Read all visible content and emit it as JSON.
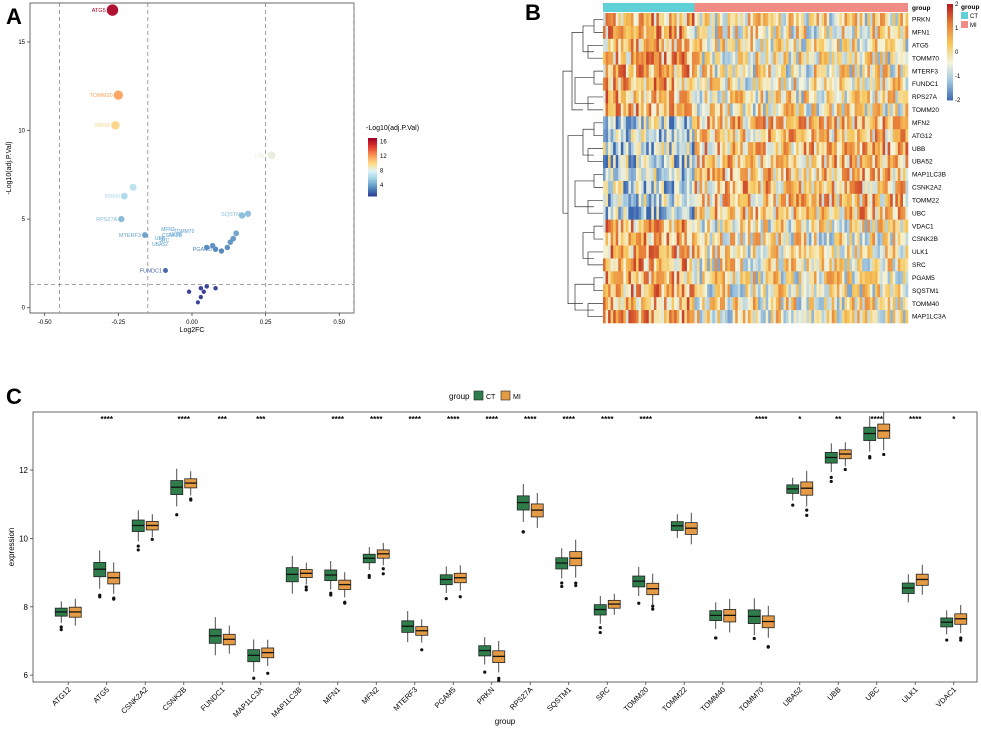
{
  "panels": {
    "a": "A",
    "b": "B",
    "c": "C"
  },
  "chart_data": [
    {
      "type": "scatter",
      "panel": "A",
      "title": "",
      "xlabel": "Log2FC",
      "ylabel": "-Log10(adj.P.Val)",
      "xlim": [
        -0.55,
        0.55
      ],
      "ylim": [
        -0.3,
        17.2
      ],
      "xticks": [
        -0.5,
        -0.25,
        0.0,
        0.25,
        0.5
      ],
      "xtick_labels": [
        "-0.50",
        "-0.25",
        "0.00",
        "0.25",
        "0.50"
      ],
      "yticks": [
        0,
        5,
        10,
        15
      ],
      "vlines": [
        -0.45,
        -0.15,
        0.25,
        0.55
      ],
      "hline": 1.3,
      "grid": false,
      "colorbar": {
        "title": "-Log10(adj.P.Val)",
        "ticks": [
          4,
          8,
          12,
          16
        ],
        "min": 1,
        "max": 17,
        "colors": [
          "#313695",
          "#4575b4",
          "#74add1",
          "#abd9e9",
          "#e0f3f8",
          "#fee090",
          "#fdae61",
          "#f46d43",
          "#d73027",
          "#a50026"
        ]
      },
      "points": [
        {
          "label": "ATG5",
          "x": -0.27,
          "y": 16.8
        },
        {
          "label": "TOMM20",
          "x": -0.25,
          "y": 12.0
        },
        {
          "label": "MFN1",
          "x": -0.26,
          "y": 10.3
        },
        {
          "label": "UBC",
          "x": 0.27,
          "y": 8.6
        },
        {
          "label": "",
          "x": -0.2,
          "y": 6.8
        },
        {
          "label": "PRKN",
          "x": -0.23,
          "y": 6.3
        },
        {
          "label": "RPS27A",
          "x": -0.24,
          "y": 5.0
        },
        {
          "label": "MTERF3",
          "x": -0.16,
          "y": 4.1
        },
        {
          "label": "SQSTM1",
          "x": 0.19,
          "y": 5.3
        },
        {
          "label": "",
          "x": 0.17,
          "y": 5.2
        },
        {
          "label": "",
          "x": 0.15,
          "y": 4.2
        },
        {
          "label": "",
          "x": 0.14,
          "y": 3.9
        },
        {
          "label": "",
          "x": 0.13,
          "y": 3.7
        },
        {
          "label": "",
          "x": 0.12,
          "y": 3.4
        },
        {
          "label": "",
          "x": 0.1,
          "y": 3.2
        },
        {
          "label": "PGAM5",
          "x": 0.08,
          "y": 3.3
        },
        {
          "label": "",
          "x": 0.07,
          "y": 3.5
        },
        {
          "label": "",
          "x": 0.05,
          "y": 3.4
        },
        {
          "label": "FUNDC1",
          "x": -0.09,
          "y": 2.1
        },
        {
          "label": "",
          "x": 0.05,
          "y": 1.2
        },
        {
          "label": "",
          "x": 0.04,
          "y": 0.9
        },
        {
          "label": "",
          "x": 0.03,
          "y": 0.6
        },
        {
          "label": "",
          "x": 0.02,
          "y": 0.3
        },
        {
          "label": "",
          "x": -0.01,
          "y": 0.9
        },
        {
          "label": "",
          "x": 0.03,
          "y": 1.1
        },
        {
          "label": "",
          "x": 0.08,
          "y": 1.1
        }
      ],
      "visible_labels": [
        "MFN2",
        "SRC",
        "UBA52",
        "ULK1",
        "UBB",
        "TOMM70",
        "CSNK2B",
        "UBC"
      ]
    },
    {
      "type": "heatmap",
      "panel": "B",
      "rows": [
        "PRKN",
        "MFN1",
        "ATG5",
        "TOMM70",
        "MTERF3",
        "FUNDC1",
        "RPS27A",
        "TOMM20",
        "MFN2",
        "ATG12",
        "UBB",
        "UBA52",
        "MAP1LC3B",
        "CSNK2A2",
        "TOMM22",
        "UBC",
        "VDAC1",
        "CSNK2B",
        "ULK1",
        "SRC",
        "PGAM5",
        "SQSTM1",
        "TOMM40",
        "MAP1LC3A"
      ],
      "annotation": {
        "title": "group",
        "groups": [
          "CT",
          "MI"
        ],
        "colors": [
          "#5fd0d8",
          "#f08c84"
        ],
        "ct_fraction": 0.3
      },
      "colorbar": {
        "ticks": [
          2,
          1,
          0,
          -1,
          -2
        ],
        "min": -2,
        "max": 2,
        "colors": [
          "#3b66b0",
          "#9cc3de",
          "#f5f5dc",
          "#f6c65a",
          "#e8803a",
          "#b92020"
        ]
      }
    },
    {
      "type": "box",
      "panel": "C",
      "title": "",
      "xlabel": "group",
      "ylabel": "expression",
      "ylim": [
        5.8,
        13.7
      ],
      "yticks": [
        6,
        8,
        10,
        12
      ],
      "legend": {
        "title": "group",
        "position": "top",
        "entries": [
          {
            "name": "CT",
            "color": "#2e7d4b"
          },
          {
            "name": "MI",
            "color": "#e59a45"
          }
        ]
      },
      "categories": [
        "ATG12",
        "ATG5",
        "CSNK2A2",
        "CSNK2B",
        "FUNDC1",
        "MAP1LC3A",
        "MAP1LC3B",
        "MFN1",
        "MFN2",
        "MTERF3",
        "PGAM5",
        "PRKN",
        "RPS27A",
        "SQSTM1",
        "SRC",
        "TOMM20",
        "TOMM22",
        "TOMM40",
        "TOMM70",
        "UBA52",
        "UBB",
        "UBC",
        "ULK1",
        "VDAC1"
      ],
      "significance": [
        "",
        "****",
        "",
        "****",
        "***",
        "***",
        "",
        "****",
        "****",
        "****",
        "****",
        "****",
        "****",
        "****",
        "****",
        "****",
        "",
        "",
        "****",
        "*",
        "**",
        "****",
        "****",
        "*"
      ],
      "series": [
        {
          "name": "CT",
          "medians": [
            7.85,
            9.1,
            10.38,
            11.5,
            7.15,
            6.58,
            8.95,
            8.93,
            9.42,
            7.43,
            8.8,
            6.72,
            11.05,
            9.28,
            7.92,
            8.75,
            10.37,
            7.75,
            7.72,
            11.45,
            12.37,
            13.07,
            8.55,
            7.55
          ]
        },
        {
          "name": "MI",
          "medians": [
            7.85,
            8.85,
            10.38,
            11.62,
            7.05,
            6.66,
            8.98,
            8.65,
            9.55,
            7.3,
            8.85,
            6.55,
            10.83,
            9.42,
            8.08,
            8.53,
            10.3,
            7.75,
            7.57,
            11.47,
            12.47,
            13.15,
            8.8,
            7.65
          ]
        }
      ]
    }
  ]
}
